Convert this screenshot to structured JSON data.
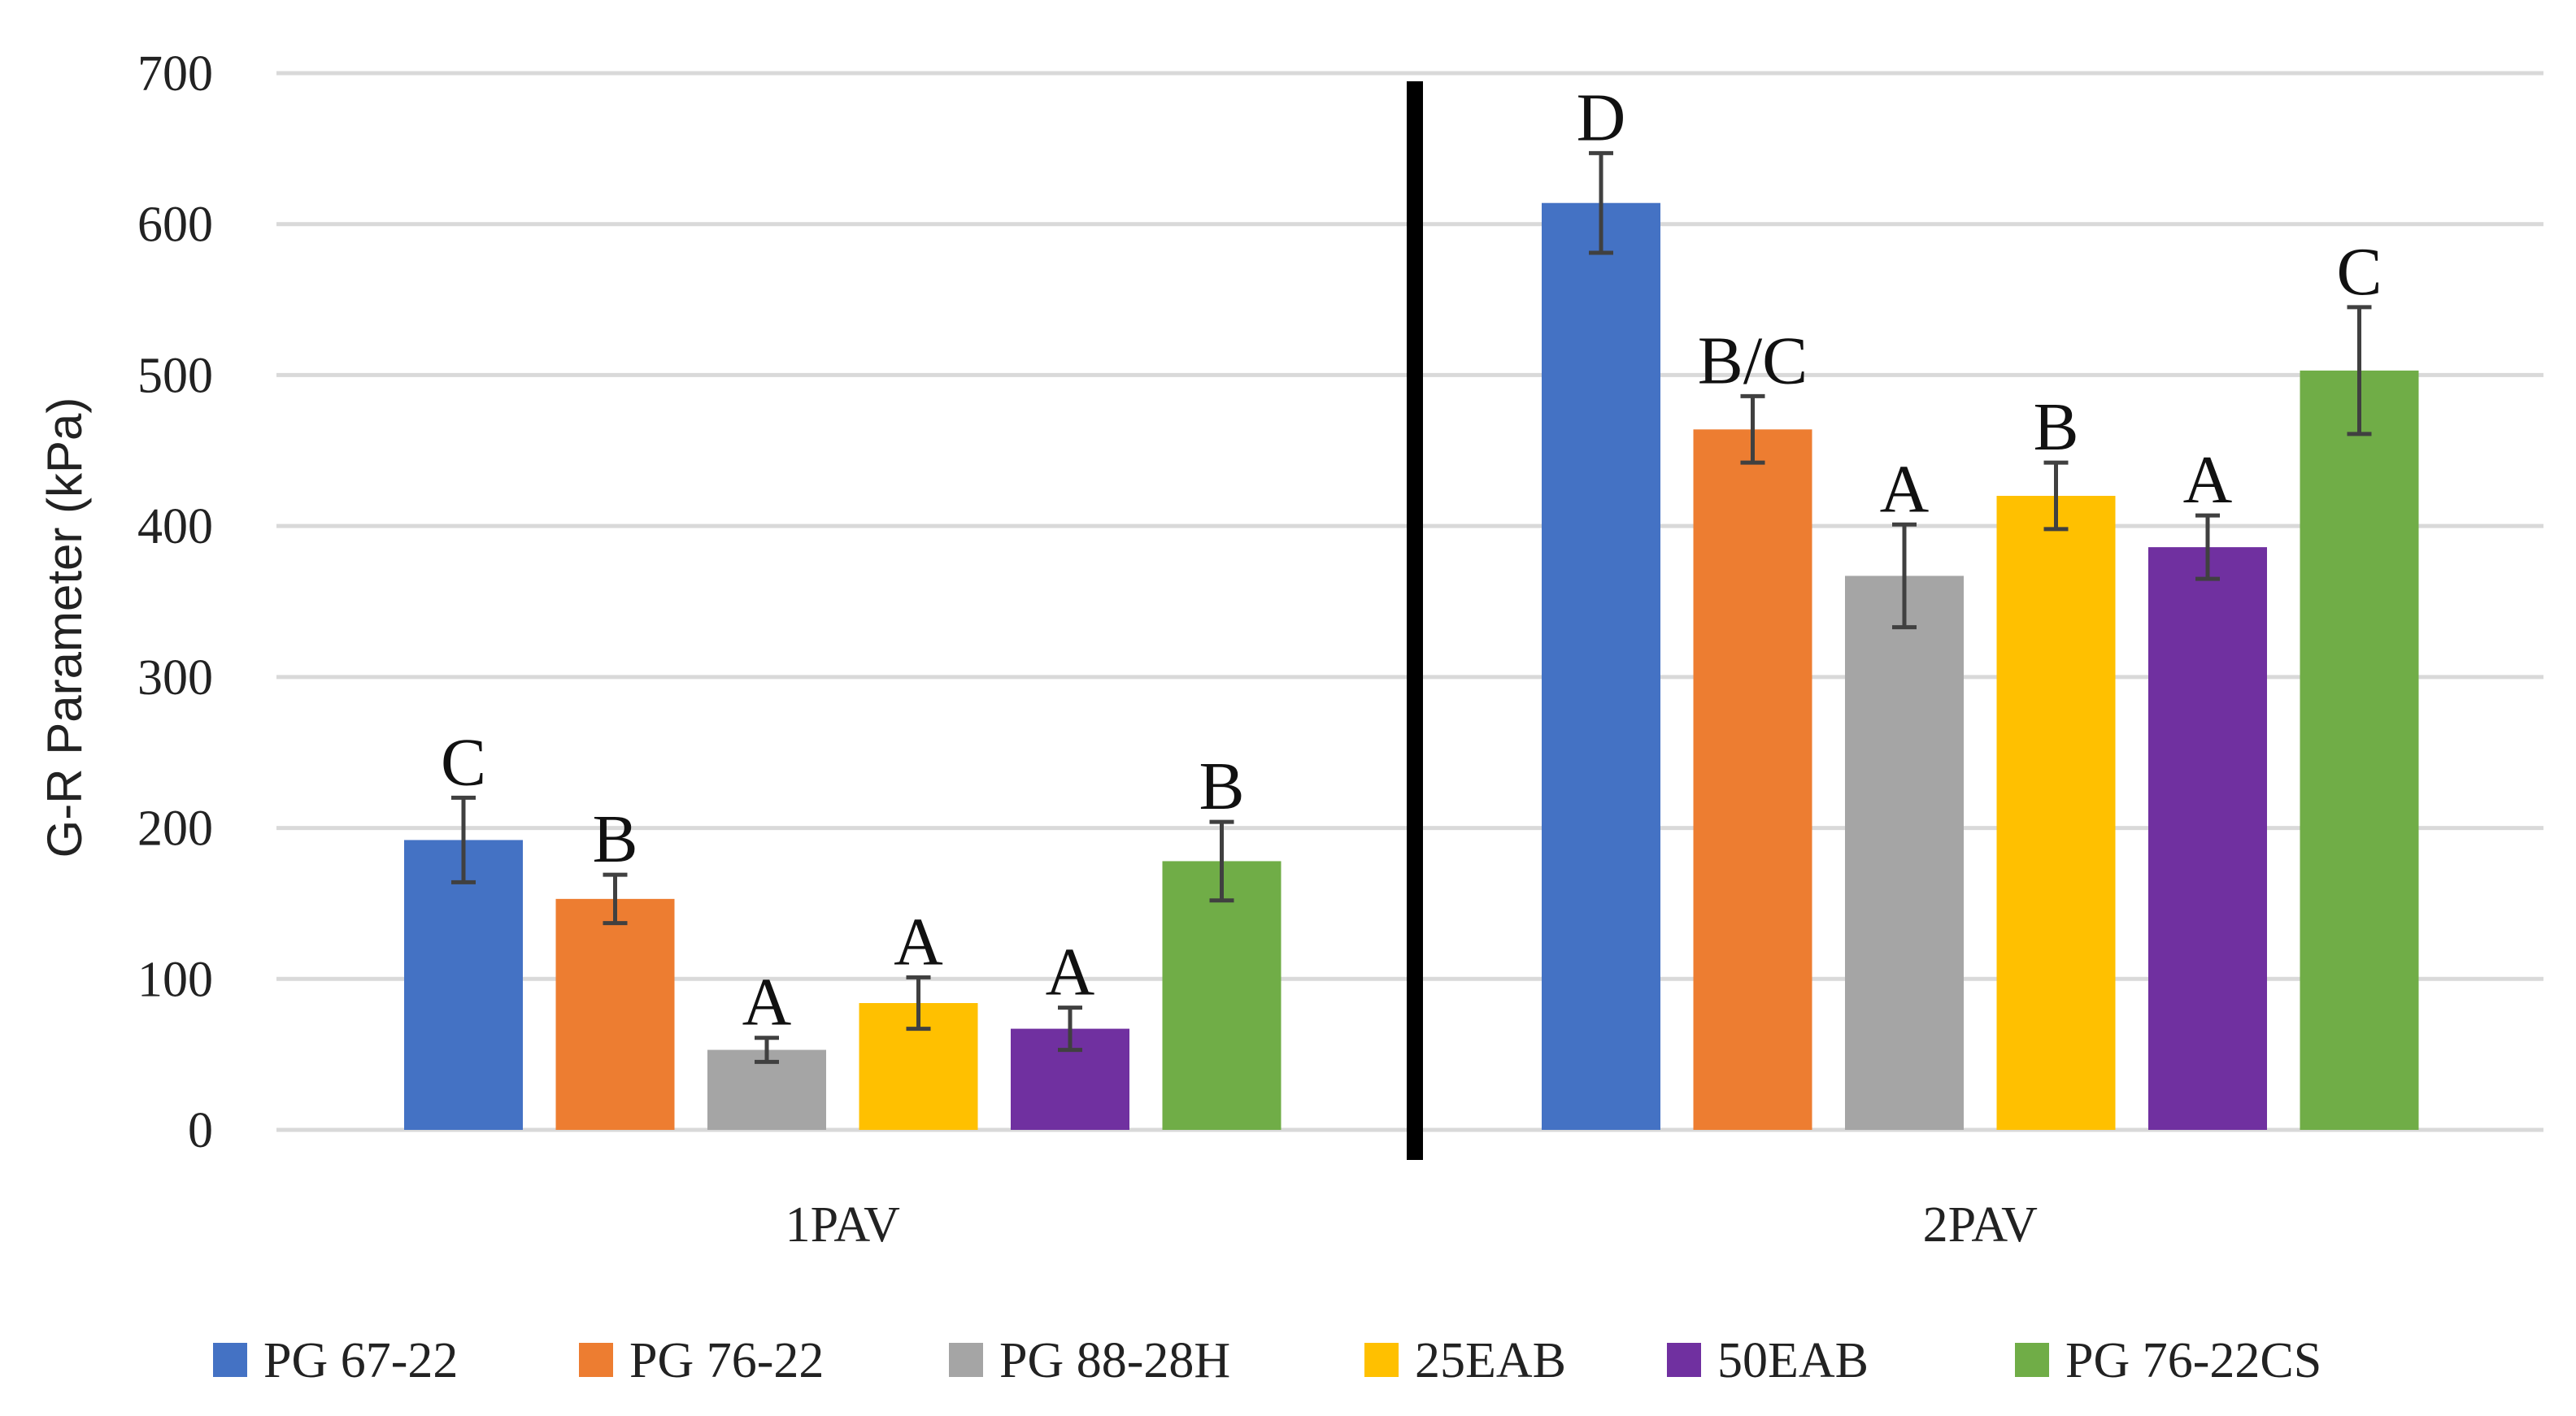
{
  "chart_data": {
    "type": "bar",
    "title": "",
    "xlabel": "",
    "ylabel": "G-R Parameter (kPa)",
    "ylim": [
      0,
      700
    ],
    "yticks": [
      0,
      100,
      200,
      300,
      400,
      500,
      600,
      700
    ],
    "grid": true,
    "legend_position": "bottom",
    "categories": [
      "1PAV",
      "2PAV"
    ],
    "series": [
      {
        "name": "PG 67-22",
        "color": "#4472C4",
        "values": [
          192,
          614
        ],
        "errors": [
          28,
          33
        ],
        "labels": [
          "C",
          "D"
        ]
      },
      {
        "name": "PG 76-22",
        "color": "#ED7D31",
        "values": [
          153,
          464
        ],
        "errors": [
          16,
          22
        ],
        "labels": [
          "B",
          "B/C"
        ]
      },
      {
        "name": "PG 88-28H",
        "color": "#A5A5A5",
        "values": [
          53,
          367
        ],
        "errors": [
          8,
          34
        ],
        "labels": [
          "A",
          "A"
        ]
      },
      {
        "name": "25EAB",
        "color": "#FFC000",
        "values": [
          84,
          420
        ],
        "errors": [
          17,
          22
        ],
        "labels": [
          "A",
          "B"
        ]
      },
      {
        "name": "50EAB",
        "color": "#7030A0",
        "values": [
          67,
          386
        ],
        "errors": [
          14,
          21
        ],
        "labels": [
          "A",
          "A"
        ]
      },
      {
        "name": "PG 76-22CS",
        "color": "#70AD47",
        "values": [
          178,
          503
        ],
        "errors": [
          26,
          42
        ],
        "labels": [
          "B",
          "C"
        ]
      }
    ]
  }
}
